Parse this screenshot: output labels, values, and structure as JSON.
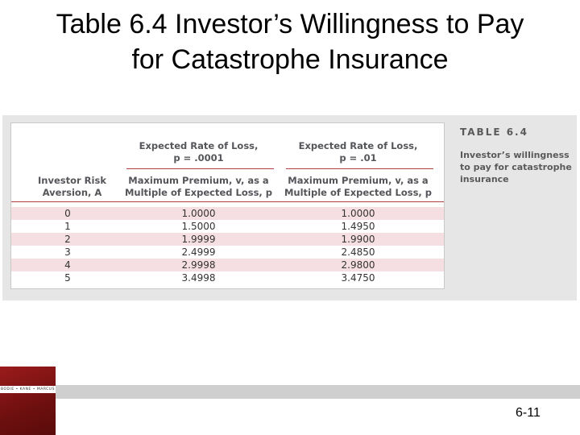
{
  "slide": {
    "title_line1": "Table 6.4 Investor’s Willingness to Pay",
    "title_line2": "for Catastrophe Insurance",
    "page_number": "6-11"
  },
  "caption": {
    "label": "TABLE 6.4",
    "text": "Investor’s willingness to pay for catastrophe insurance"
  },
  "table": {
    "col0_header": [
      "Investor Risk",
      "Aversion, A"
    ],
    "group1_header": [
      "Expected Rate of Loss,",
      "p = .0001"
    ],
    "group2_header": [
      "Expected Rate of Loss,",
      "p = .01"
    ],
    "sub_header": [
      "Maximum Premium, v, as a",
      "Multiple of Expected Loss, p"
    ],
    "rows": [
      [
        "0",
        "1.0000",
        "1.0000"
      ],
      [
        "1",
        "1.5000",
        "1.4950"
      ],
      [
        "2",
        "1.9999",
        "1.9900"
      ],
      [
        "3",
        "2.4999",
        "2.4850"
      ],
      [
        "4",
        "2.9998",
        "2.9800"
      ],
      [
        "5",
        "3.4998",
        "3.4750"
      ]
    ]
  },
  "logo": {
    "text": "BODIE • KANE • MARCUS"
  },
  "colors": {
    "accent": "#b04040",
    "row_shade": "#f6dfe2",
    "logo": "#8b1a1a"
  }
}
